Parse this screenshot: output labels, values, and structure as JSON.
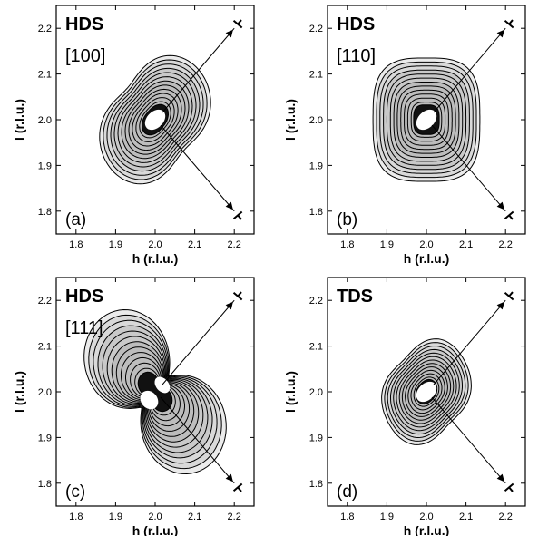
{
  "chart_data": [
    {
      "type": "contour",
      "panel_label": "(a)",
      "title": "HDS",
      "subtitle": "[100]",
      "xlabel": "h (r.l.u.)",
      "ylabel": "l (r.l.u.)",
      "xlim": [
        1.75,
        2.25
      ],
      "ylim": [
        1.75,
        2.25
      ],
      "xticks": [
        "1.8",
        "1.9",
        "2.0",
        "2.1",
        "2.2"
      ],
      "yticks": [
        "1.8",
        "1.9",
        "2.0",
        "2.1",
        "2.2"
      ],
      "center": [
        2.0,
        2.0
      ],
      "shape": "elongated along diagonal (h=l direction)",
      "levels": 12,
      "scan_lines": [
        {
          "from": [
            2.0,
            2.0
          ],
          "to": [
            2.2,
            2.2
          ]
        },
        {
          "from": [
            2.0,
            2.0
          ],
          "to": [
            2.2,
            1.8
          ]
        }
      ]
    },
    {
      "type": "contour",
      "panel_label": "(b)",
      "title": "HDS",
      "subtitle": "[110]",
      "xlabel": "h (r.l.u.)",
      "ylabel": "l (r.l.u.)",
      "xlim": [
        1.75,
        2.25
      ],
      "ylim": [
        1.75,
        2.25
      ],
      "xticks": [
        "1.8",
        "1.9",
        "2.0",
        "2.1",
        "2.2"
      ],
      "yticks": [
        "1.8",
        "1.9",
        "2.0",
        "2.1",
        "2.2"
      ],
      "center": [
        2.0,
        2.0
      ],
      "shape": "nearly isotropic, rounded square",
      "levels": 12,
      "scan_lines": [
        {
          "from": [
            2.0,
            2.0
          ],
          "to": [
            2.2,
            2.2
          ]
        },
        {
          "from": [
            2.0,
            2.0
          ],
          "to": [
            2.2,
            1.8
          ]
        }
      ]
    },
    {
      "type": "contour",
      "panel_label": "(c)",
      "title": "HDS",
      "subtitle": "[111]",
      "xlabel": "h (r.l.u.)",
      "ylabel": "l (r.l.u.)",
      "xlim": [
        1.75,
        2.25
      ],
      "ylim": [
        1.75,
        2.25
      ],
      "xticks": [
        "1.8",
        "1.9",
        "2.0",
        "2.1",
        "2.2"
      ],
      "yticks": [
        "1.8",
        "1.9",
        "2.0",
        "2.1",
        "2.2"
      ],
      "center": [
        2.0,
        2.0
      ],
      "shape": "butterfly / two lobes along anti-diagonal",
      "levels": 12,
      "scan_lines": [
        {
          "from": [
            2.0,
            2.0
          ],
          "to": [
            2.2,
            2.2
          ]
        },
        {
          "from": [
            2.0,
            2.0
          ],
          "to": [
            2.2,
            1.8
          ]
        }
      ]
    },
    {
      "type": "contour",
      "panel_label": "(d)",
      "title": "TDS",
      "subtitle": "",
      "xlabel": "h (r.l.u.)",
      "ylabel": "l (r.l.u.)",
      "xlim": [
        1.75,
        2.25
      ],
      "ylim": [
        1.75,
        2.25
      ],
      "xticks": [
        "1.8",
        "1.9",
        "2.0",
        "2.1",
        "2.2"
      ],
      "yticks": [
        "1.8",
        "1.9",
        "2.0",
        "2.1",
        "2.2"
      ],
      "center": [
        2.0,
        2.0
      ],
      "shape": "compact, slightly elongated along diagonal",
      "levels": 12,
      "scan_lines": [
        {
          "from": [
            2.0,
            2.0
          ],
          "to": [
            2.2,
            2.2
          ]
        },
        {
          "from": [
            2.0,
            2.0
          ],
          "to": [
            2.2,
            1.8
          ]
        }
      ]
    }
  ]
}
